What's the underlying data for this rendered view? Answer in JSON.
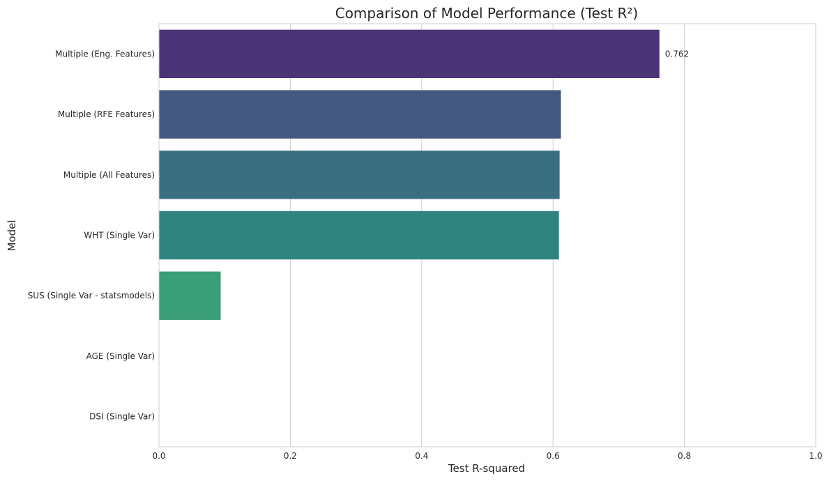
{
  "chart_data": {
    "type": "bar",
    "orientation": "horizontal",
    "title": "Comparison of Model Performance (Test R²)",
    "xlabel": "Test R-squared",
    "ylabel": "Model",
    "xlim": [
      0,
      1.0
    ],
    "xticks": [
      "0.0",
      "0.2",
      "0.4",
      "0.6",
      "0.8",
      "1.0"
    ],
    "grid": "vertical",
    "categories": [
      "Multiple (Eng. Features)",
      "Multiple (RFE Features)",
      "Multiple (All Features)",
      "WHT (Single Var)",
      "SUS (Single Var - statsmodels)",
      "AGE (Single Var)",
      "DSI (Single Var)"
    ],
    "values": [
      0.762,
      0.612,
      0.61,
      0.609,
      0.094,
      0.0,
      0.0
    ],
    "colors": [
      "#4b3477",
      "#45587f",
      "#3b6e81",
      "#2f8480",
      "#3a9e78",
      "#64bb68",
      "#a6cc52"
    ],
    "annotations": [
      {
        "category": "Multiple (Eng. Features)",
        "text": "0.762"
      }
    ]
  }
}
